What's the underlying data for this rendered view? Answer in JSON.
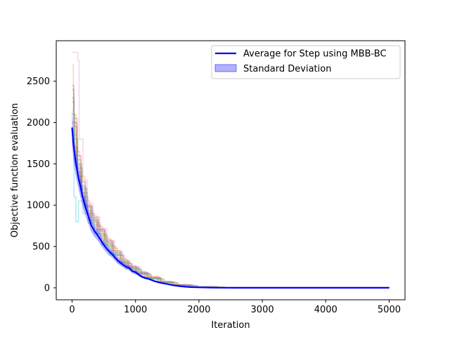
{
  "chart_data": {
    "type": "line",
    "title": "",
    "xlabel": "Iteration",
    "ylabel": "Objective function evaluation",
    "xlim": [
      -250,
      5250
    ],
    "ylim": [
      -145,
      2990
    ],
    "xticks": [
      0,
      1000,
      2000,
      3000,
      4000,
      5000
    ],
    "xtick_labels": [
      "0",
      "1000",
      "2000",
      "3000",
      "4000",
      "5000"
    ],
    "yticks": [
      0,
      500,
      1000,
      1500,
      2000,
      2500
    ],
    "ytick_labels": [
      "0",
      "500",
      "1000",
      "1500",
      "2000",
      "2500"
    ],
    "grid": false,
    "legend_position": "top-right",
    "legend": [
      {
        "label": "Average for Step using MBB-BC",
        "kind": "line",
        "color": "#0000ff"
      },
      {
        "label": "Standard Deviation",
        "kind": "patch",
        "color": "#0000ff"
      }
    ],
    "average": {
      "name": "Average for Step using MBB-BC",
      "color": "#0000ff",
      "x": [
        0,
        20,
        40,
        60,
        80,
        100,
        130,
        160,
        190,
        220,
        260,
        300,
        350,
        400,
        450,
        500,
        550,
        600,
        650,
        700,
        750,
        800,
        850,
        900,
        950,
        1000,
        1050,
        1100,
        1150,
        1200,
        1300,
        1400,
        1500,
        1600,
        1700,
        1800,
        1900,
        2000,
        2200,
        2400,
        2600,
        3000,
        3500,
        4000,
        4500,
        5000
      ],
      "y": [
        1940,
        1750,
        1620,
        1500,
        1420,
        1330,
        1230,
        1120,
        1030,
        950,
        860,
        760,
        690,
        640,
        580,
        520,
        470,
        430,
        390,
        345,
        310,
        280,
        255,
        240,
        200,
        190,
        160,
        135,
        120,
        110,
        80,
        60,
        45,
        30,
        20,
        12,
        8,
        5,
        2,
        1,
        0,
        0,
        0,
        0,
        0,
        0
      ]
    },
    "std_band": {
      "name": "Standard Deviation",
      "color": "#0000ff",
      "x": [
        0,
        20,
        40,
        60,
        80,
        100,
        130,
        160,
        190,
        220,
        260,
        300,
        350,
        400,
        450,
        500,
        550,
        600,
        650,
        700,
        750,
        800,
        850,
        900,
        950,
        1000,
        1050,
        1100,
        1150,
        1200,
        1300,
        1400,
        1500,
        1600,
        1700,
        1800,
        1900,
        2000,
        2200,
        2400,
        2600,
        3000,
        3500,
        4000,
        4500,
        5000
      ],
      "sd": [
        220,
        200,
        180,
        160,
        150,
        140,
        130,
        120,
        110,
        100,
        90,
        80,
        70,
        65,
        60,
        55,
        50,
        45,
        40,
        38,
        35,
        32,
        30,
        28,
        25,
        22,
        20,
        18,
        15,
        12,
        10,
        8,
        6,
        5,
        4,
        3,
        2,
        1,
        1,
        0,
        0,
        0,
        0,
        0,
        0,
        0
      ]
    },
    "runs": [
      {
        "color": "#1f77b4",
        "x": [
          0,
          30,
          80,
          150,
          230,
          310,
          400,
          520,
          650,
          780,
          900,
          1050,
          1200,
          1400,
          1600,
          1900,
          2300,
          5000
        ],
        "y": [
          2300,
          1950,
          1500,
          1200,
          980,
          820,
          700,
          560,
          430,
          320,
          250,
          180,
          120,
          70,
          35,
          12,
          2,
          0
        ]
      },
      {
        "color": "#ff7f0e",
        "x": [
          0,
          20,
          60,
          120,
          200,
          280,
          380,
          480,
          600,
          720,
          850,
          1000,
          1150,
          1350,
          1550,
          1800,
          2200,
          5000
        ],
        "y": [
          2700,
          2100,
          1650,
          1350,
          1050,
          880,
          740,
          600,
          480,
          360,
          270,
          200,
          140,
          80,
          40,
          15,
          3,
          0
        ]
      },
      {
        "color": "#2ca02c",
        "x": [
          0,
          40,
          90,
          160,
          240,
          330,
          430,
          540,
          660,
          800,
          930,
          1080,
          1230,
          1420,
          1650,
          1950,
          2400,
          5000
        ],
        "y": [
          2100,
          1800,
          1450,
          1150,
          930,
          790,
          650,
          520,
          400,
          300,
          230,
          170,
          110,
          65,
          30,
          10,
          2,
          0
        ]
      },
      {
        "color": "#d62728",
        "x": [
          0,
          25,
          70,
          140,
          210,
          300,
          410,
          510,
          630,
          760,
          880,
          1020,
          1180,
          1380,
          1580,
          1850,
          2250,
          5000
        ],
        "y": [
          2450,
          2000,
          1600,
          1280,
          1000,
          850,
          710,
          580,
          450,
          340,
          260,
          190,
          130,
          75,
          38,
          14,
          3,
          0
        ]
      },
      {
        "color": "#9467bd",
        "x": [
          0,
          30,
          75,
          130,
          220,
          320,
          420,
          530,
          640,
          770,
          890,
          1040,
          1190,
          1390,
          1600,
          1880,
          2280,
          5000
        ],
        "y": [
          2250,
          1850,
          1480,
          1220,
          990,
          830,
          690,
          550,
          420,
          315,
          245,
          175,
          118,
          68,
          33,
          12,
          2,
          0
        ]
      },
      {
        "color": "#8c564b",
        "x": [
          0,
          35,
          85,
          150,
          250,
          350,
          450,
          560,
          690,
          820,
          950,
          1100,
          1250,
          1450,
          1680,
          1980,
          2400,
          5000
        ],
        "y": [
          2000,
          1700,
          1400,
          1100,
          900,
          760,
          630,
          500,
          390,
          290,
          220,
          160,
          105,
          60,
          28,
          9,
          2,
          0
        ]
      },
      {
        "color": "#e377c2",
        "x": [
          0,
          90,
          110,
          170,
          240,
          330,
          440,
          550,
          670,
          800,
          920,
          1070,
          1220,
          1410,
          1620,
          1900,
          2300,
          5000
        ],
        "y": [
          2850,
          2750,
          1800,
          1300,
          1020,
          860,
          720,
          570,
          440,
          330,
          255,
          185,
          125,
          72,
          36,
          13,
          3,
          0
        ]
      },
      {
        "color": "#7f7f7f",
        "x": [
          0,
          30,
          80,
          140,
          200,
          290,
          390,
          500,
          620,
          750,
          870,
          1010,
          1160,
          1360,
          1570,
          1860,
          2260,
          5000
        ],
        "y": [
          2400,
          2050,
          1550,
          1240,
          970,
          810,
          680,
          540,
          410,
          310,
          240,
          175,
          120,
          70,
          34,
          12,
          2,
          0
        ]
      },
      {
        "color": "#bcbd22",
        "x": [
          0,
          25,
          65,
          130,
          210,
          300,
          400,
          510,
          640,
          770,
          900,
          1050,
          1200,
          1400,
          1620,
          1920,
          2350,
          5000
        ],
        "y": [
          2150,
          1900,
          1500,
          1180,
          950,
          800,
          660,
          530,
          410,
          305,
          235,
          170,
          115,
          66,
          31,
          11,
          2,
          0
        ]
      },
      {
        "color": "#17becf",
        "x": [
          0,
          30,
          60,
          100,
          170,
          250,
          350,
          460,
          580,
          710,
          840,
          990,
          1140,
          1340,
          1560,
          1840,
          2240,
          5000
        ],
        "y": [
          1900,
          1100,
          800,
          1050,
          900,
          780,
          660,
          520,
          400,
          300,
          230,
          165,
          112,
          64,
          30,
          11,
          2,
          0
        ]
      }
    ]
  }
}
